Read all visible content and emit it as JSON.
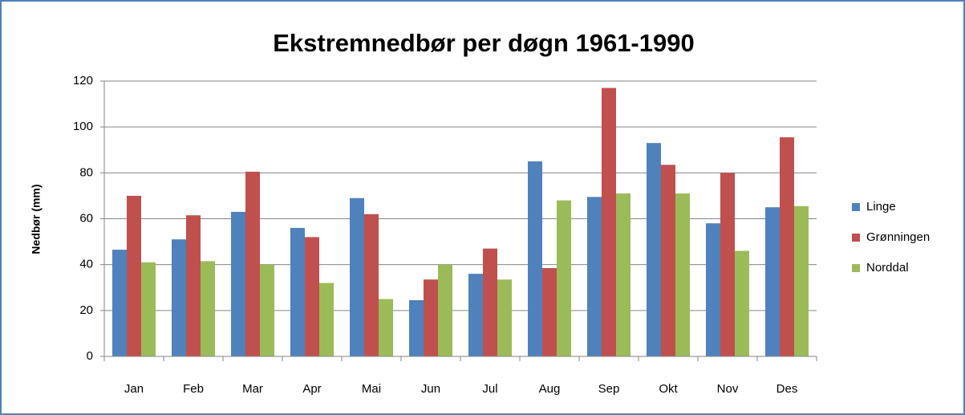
{
  "chart_data": {
    "type": "bar",
    "title": "Ekstremnedbør per døgn 1961-1990",
    "y_label": "Nedbør (mm)",
    "categories": [
      "Jan",
      "Feb",
      "Mar",
      "Apr",
      "Mai",
      "Jun",
      "Jul",
      "Aug",
      "Sep",
      "Okt",
      "Nov",
      "Des"
    ],
    "series": [
      {
        "name": "Linge",
        "color": "#4f81bd",
        "values": [
          46.5,
          51,
          63,
          56,
          69,
          24.5,
          36,
          85,
          69.5,
          93,
          58,
          65
        ]
      },
      {
        "name": "Grønningen",
        "color": "#c0504d",
        "values": [
          70,
          61.5,
          80.5,
          52,
          62,
          33.5,
          47,
          38.5,
          117,
          83.5,
          80,
          95.5
        ]
      },
      {
        "name": "Norddal",
        "color": "#9bbb59",
        "values": [
          41,
          41.5,
          40,
          32,
          25,
          40,
          33.5,
          68,
          71,
          71,
          46,
          65.5
        ]
      }
    ],
    "ylim": [
      0,
      120
    ],
    "yticks": [
      0,
      20,
      40,
      60,
      80,
      100,
      120
    ],
    "grid": true,
    "legend": "right"
  }
}
